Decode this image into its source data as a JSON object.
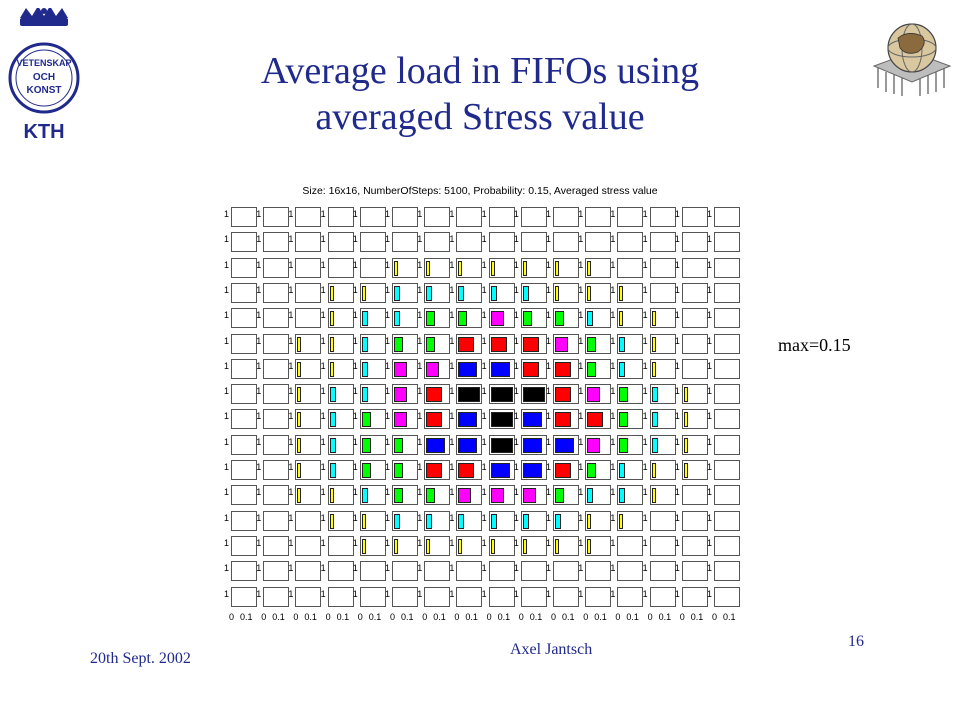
{
  "slide": {
    "title_line1": "Average load in FIFOs using",
    "title_line2": "averaged Stress value",
    "max_label": "max=0.15",
    "page_number": "16",
    "date": "20th Sept. 2002",
    "author": "Axel Jantsch",
    "logo_left_lines": [
      "VETENSKAP",
      "OCH",
      "KONST",
      "KTH"
    ]
  },
  "chart_data": {
    "type": "heatmap",
    "title": "Size: 16x16, NumberOfSteps: 5100, Probability: 0.15, Averaged stress value",
    "rows": 16,
    "cols": 16,
    "y_tick_label": "1",
    "x_tick_labels": [
      "0",
      "0.1"
    ],
    "xlim": [
      0,
      0.15
    ],
    "max": 0.15,
    "color_levels": {
      "0": "#ffffff",
      "1": "#ffff00",
      "2": "#00ffff",
      "3": "#00ff00",
      "4": "#ff00ff",
      "5": "#ff0000",
      "6": "#0000ff",
      "7": "#000000"
    },
    "levels": [
      [
        0,
        0,
        0,
        0,
        0,
        0,
        0,
        0,
        0,
        0,
        0,
        0,
        0,
        0,
        0,
        0
      ],
      [
        0,
        0,
        0,
        0,
        0,
        0,
        0,
        0,
        0,
        0,
        0,
        0,
        0,
        0,
        0,
        0
      ],
      [
        0,
        0,
        0,
        0,
        0,
        1,
        1,
        1,
        1,
        1,
        1,
        1,
        0,
        0,
        0,
        0
      ],
      [
        0,
        0,
        0,
        1,
        1,
        2,
        2,
        2,
        2,
        2,
        1,
        1,
        1,
        0,
        0,
        0
      ],
      [
        0,
        0,
        0,
        1,
        2,
        2,
        3,
        3,
        4,
        3,
        3,
        2,
        1,
        1,
        0,
        0
      ],
      [
        0,
        0,
        1,
        1,
        2,
        3,
        3,
        5,
        5,
        5,
        4,
        3,
        2,
        1,
        0,
        0
      ],
      [
        0,
        0,
        1,
        1,
        2,
        4,
        4,
        6,
        6,
        5,
        5,
        3,
        2,
        1,
        0,
        0
      ],
      [
        0,
        0,
        1,
        2,
        2,
        4,
        5,
        7,
        7,
        7,
        5,
        4,
        3,
        2,
        1,
        0
      ],
      [
        0,
        0,
        1,
        2,
        3,
        4,
        5,
        6,
        7,
        6,
        5,
        5,
        3,
        2,
        1,
        0
      ],
      [
        0,
        0,
        1,
        2,
        3,
        3,
        6,
        6,
        7,
        6,
        6,
        4,
        3,
        2,
        1,
        0
      ],
      [
        0,
        0,
        1,
        2,
        3,
        3,
        5,
        5,
        6,
        6,
        5,
        3,
        2,
        1,
        1,
        0
      ],
      [
        0,
        0,
        1,
        1,
        2,
        3,
        3,
        4,
        4,
        4,
        3,
        2,
        2,
        1,
        0,
        0
      ],
      [
        0,
        0,
        0,
        1,
        1,
        2,
        2,
        2,
        2,
        2,
        2,
        1,
        1,
        0,
        0,
        0
      ],
      [
        0,
        0,
        0,
        0,
        1,
        1,
        1,
        1,
        1,
        1,
        1,
        1,
        0,
        0,
        0,
        0
      ],
      [
        0,
        0,
        0,
        0,
        0,
        0,
        0,
        0,
        0,
        0,
        0,
        0,
        0,
        0,
        0,
        0
      ],
      [
        0,
        0,
        0,
        0,
        0,
        0,
        0,
        0,
        0,
        0,
        0,
        0,
        0,
        0,
        0,
        0
      ]
    ]
  }
}
